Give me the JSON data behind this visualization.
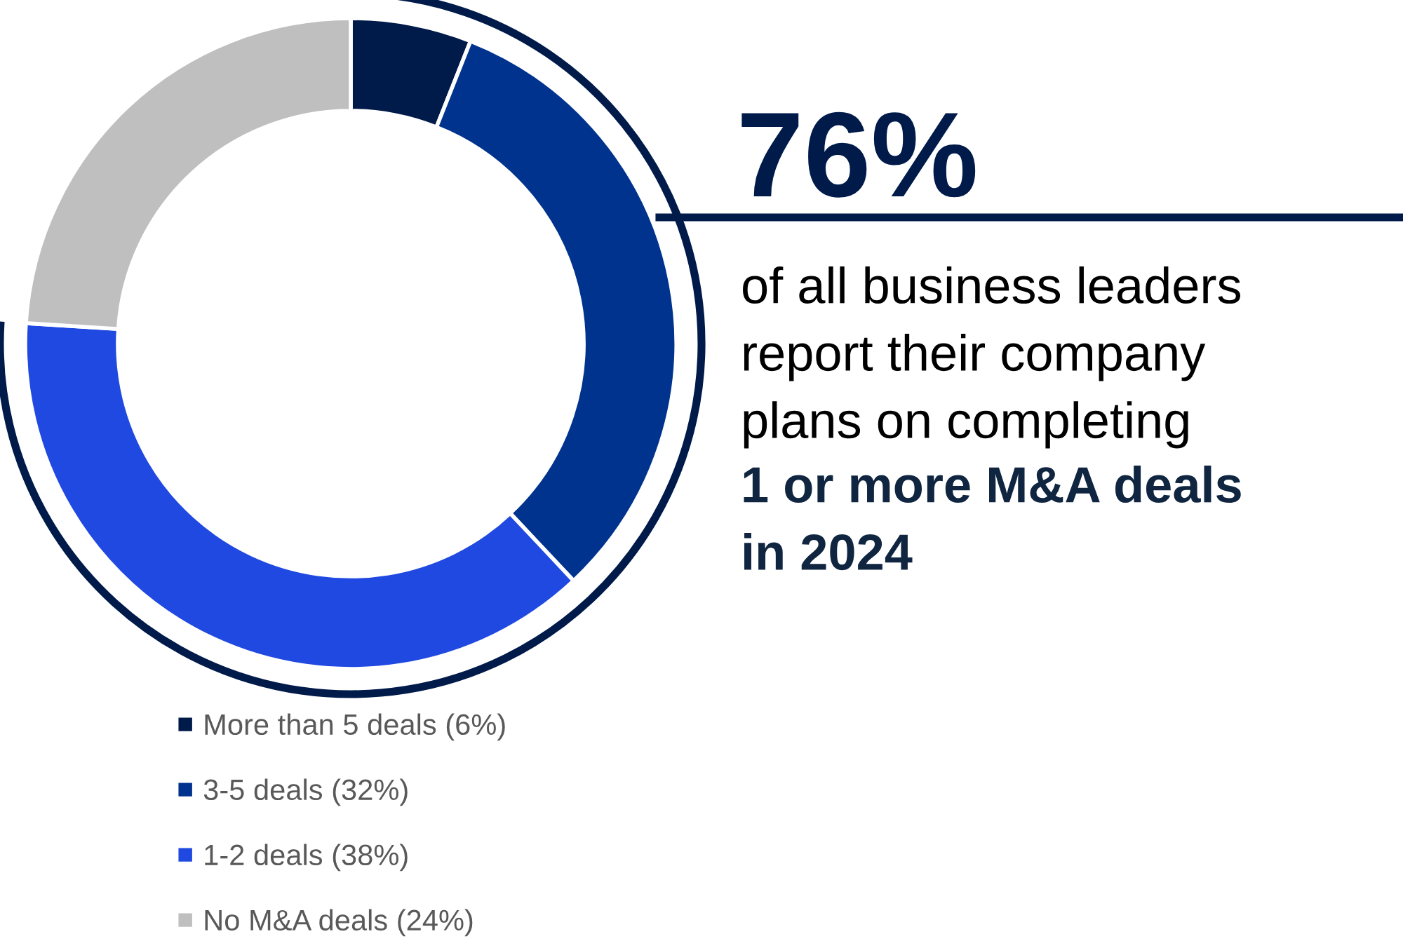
{
  "chart_data": {
    "type": "donut",
    "categories": [
      "More than 5 deals (6%)",
      "3-5 deals (32%)",
      "1-2 deals (38%)",
      "No M&A deals (24%)"
    ],
    "values": [
      6,
      32,
      38,
      24
    ],
    "colors": [
      "#001a4a",
      "#00338d",
      "#1f49e0",
      "#bfbfbf"
    ],
    "legend": "bottom",
    "annotations": [
      "76%",
      "of all business leaders\nreport their company\nplans on completing",
      "1 or more M&A deals\nin 2024"
    ]
  }
}
